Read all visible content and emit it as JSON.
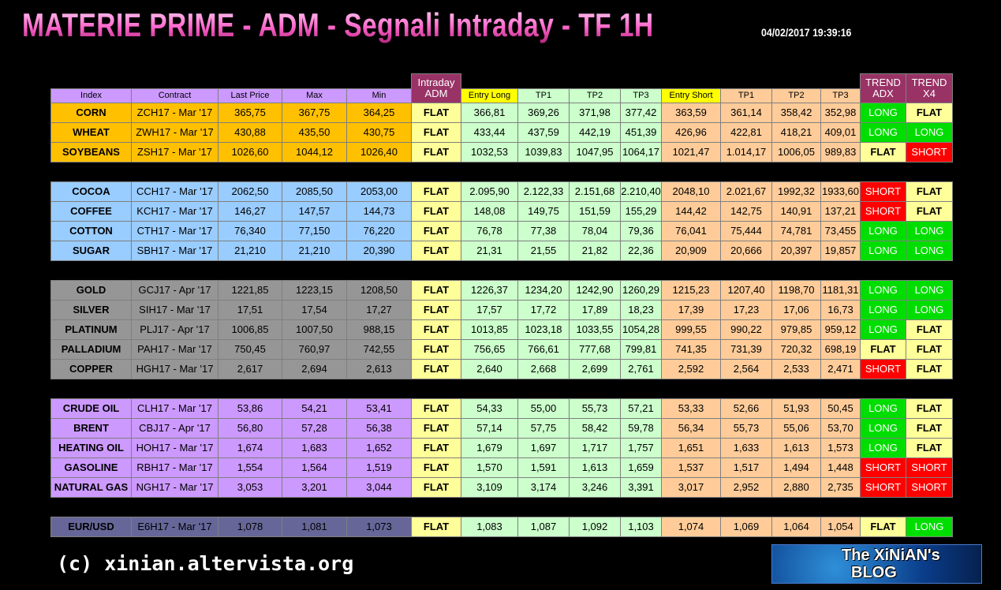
{
  "header": {
    "title": "MATERIE PRIME - ADM - Segnali Intraday - TF 1H",
    "timestamp": "04/02/2017 19:39:16"
  },
  "table": {
    "headers": [
      "Index",
      "Contract",
      "Last Price",
      "Max",
      "Min",
      "Intraday ADM",
      "Entry Long",
      "TP1",
      "TP2",
      "TP3",
      "Entry Short",
      "TP1",
      "TP2",
      "TP3",
      "TREND ADX",
      "TREND X4"
    ],
    "groups": [
      {
        "color": "#ffc000",
        "rows": [
          [
            "CORN",
            "ZCH17 - Mar '17",
            "365,75",
            "367,75",
            "364,25",
            "FLAT",
            "366,81",
            "369,26",
            "371,98",
            "377,42",
            "363,59",
            "361,14",
            "358,42",
            "352,98",
            "LONG",
            "FLAT"
          ],
          [
            "WHEAT",
            "ZWH17 - Mar '17",
            "430,88",
            "435,50",
            "430,75",
            "FLAT",
            "433,44",
            "437,59",
            "442,19",
            "451,39",
            "426,96",
            "422,81",
            "418,21",
            "409,01",
            "LONG",
            "LONG"
          ],
          [
            "SOYBEANS",
            "ZSH17 - Mar '17",
            "1026,60",
            "1044,12",
            "1026,40",
            "FLAT",
            "1032,53",
            "1039,83",
            "1047,95",
            "1064,17",
            "1021,47",
            "1.014,17",
            "1006,05",
            "989,83",
            "FLAT",
            "SHORT"
          ]
        ]
      },
      {
        "color": "#99ccff",
        "rows": [
          [
            "COCOA",
            "CCH17 - Mar '17",
            "2062,50",
            "2085,50",
            "2053,00",
            "FLAT",
            "2.095,90",
            "2.122,33",
            "2.151,68",
            "2.210,40",
            "2048,10",
            "2.021,67",
            "1992,32",
            "1933,60",
            "SHORT",
            "FLAT"
          ],
          [
            "COFFEE",
            "KCH17 - Mar '17",
            "146,27",
            "147,57",
            "144,73",
            "FLAT",
            "148,08",
            "149,75",
            "151,59",
            "155,29",
            "144,42",
            "142,75",
            "140,91",
            "137,21",
            "SHORT",
            "FLAT"
          ],
          [
            "COTTON",
            "CTH17 - Mar '17",
            "76,340",
            "77,150",
            "76,220",
            "FLAT",
            "76,78",
            "77,38",
            "78,04",
            "79,36",
            "76,041",
            "75,444",
            "74,781",
            "73,455",
            "LONG",
            "LONG"
          ],
          [
            "SUGAR",
            "SBH17 - Mar '17",
            "21,210",
            "21,210",
            "20,390",
            "FLAT",
            "21,31",
            "21,55",
            "21,82",
            "22,36",
            "20,909",
            "20,666",
            "20,397",
            "19,857",
            "LONG",
            "LONG"
          ]
        ]
      },
      {
        "color": "#969696",
        "rows": [
          [
            "GOLD",
            "GCJ17 - Apr '17",
            "1221,85",
            "1223,15",
            "1208,50",
            "FLAT",
            "1226,37",
            "1234,20",
            "1242,90",
            "1260,29",
            "1215,23",
            "1207,40",
            "1198,70",
            "1181,31",
            "LONG",
            "LONG"
          ],
          [
            "SILVER",
            "SIH17 - Mar '17",
            "17,51",
            "17,54",
            "17,27",
            "FLAT",
            "17,57",
            "17,72",
            "17,89",
            "18,23",
            "17,39",
            "17,23",
            "17,06",
            "16,73",
            "LONG",
            "LONG"
          ],
          [
            "PLATINUM",
            "PLJ17 - Apr '17",
            "1006,85",
            "1007,50",
            "988,15",
            "FLAT",
            "1013,85",
            "1023,18",
            "1033,55",
            "1054,28",
            "999,55",
            "990,22",
            "979,85",
            "959,12",
            "LONG",
            "FLAT"
          ],
          [
            "PALLADIUM",
            "PAH17 - Mar '17",
            "750,45",
            "760,97",
            "742,55",
            "FLAT",
            "756,65",
            "766,61",
            "777,68",
            "799,81",
            "741,35",
            "731,39",
            "720,32",
            "698,19",
            "FLAT",
            "FLAT"
          ],
          [
            "COPPER",
            "HGH17 - Mar '17",
            "2,617",
            "2,694",
            "2,613",
            "FLAT",
            "2,640",
            "2,668",
            "2,699",
            "2,761",
            "2,592",
            "2,564",
            "2,533",
            "2,471",
            "SHORT",
            "FLAT"
          ]
        ]
      },
      {
        "color": "#cc99ff",
        "rows": [
          [
            "CRUDE OIL",
            "CLH17 - Mar '17",
            "53,86",
            "54,21",
            "53,41",
            "FLAT",
            "54,33",
            "55,00",
            "55,73",
            "57,21",
            "53,33",
            "52,66",
            "51,93",
            "50,45",
            "LONG",
            "FLAT"
          ],
          [
            "BRENT",
            "CBJ17 - Apr '17",
            "56,80",
            "57,28",
            "56,38",
            "FLAT",
            "57,14",
            "57,75",
            "58,42",
            "59,78",
            "56,34",
            "55,73",
            "55,06",
            "53,70",
            "LONG",
            "FLAT"
          ],
          [
            "HEATING OIL",
            "HOH17 - Mar '17",
            "1,674",
            "1,683",
            "1,652",
            "FLAT",
            "1,679",
            "1,697",
            "1,717",
            "1,757",
            "1,651",
            "1,633",
            "1,613",
            "1,573",
            "LONG",
            "FLAT"
          ],
          [
            "GASOLINE",
            "RBH17 - Mar '17",
            "1,554",
            "1,564",
            "1,519",
            "FLAT",
            "1,570",
            "1,591",
            "1,613",
            "1,659",
            "1,537",
            "1,517",
            "1,494",
            "1,448",
            "SHORT",
            "SHORT"
          ],
          [
            "NATURAL GAS",
            "NGH17 - Mar '17",
            "3,053",
            "3,201",
            "3,044",
            "FLAT",
            "3,109",
            "3,174",
            "3,246",
            "3,391",
            "3,017",
            "2,952",
            "2,880",
            "2,735",
            "SHORT",
            "SHORT"
          ]
        ]
      },
      {
        "color": "#666699",
        "rows": [
          [
            "EUR/USD",
            "E6H17 - Mar '17",
            "1,078",
            "1,081",
            "1,073",
            "FLAT",
            "1,083",
            "1,087",
            "1,092",
            "1,103",
            "1,074",
            "1,069",
            "1,064",
            "1,054",
            "FLAT",
            "LONG"
          ]
        ]
      }
    ]
  },
  "footer": {
    "copyright": "(c) xinian.altervista.org"
  },
  "logo": {
    "line1": "The XiNiAN's",
    "line2": "BLOG"
  }
}
